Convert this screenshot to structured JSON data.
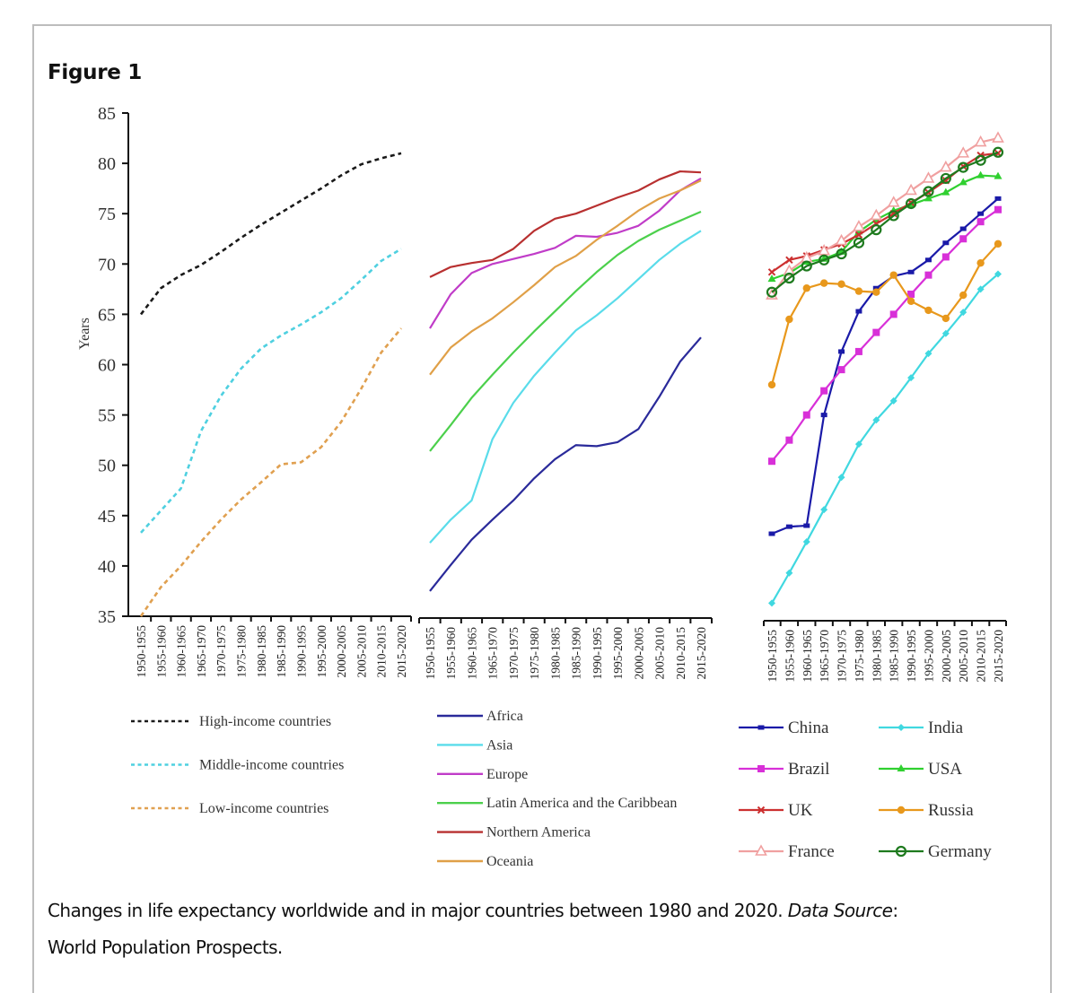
{
  "figure": {
    "title": "Figure 1",
    "caption_main": "Changes in life expectancy worldwide and in major countries between 1980 and 2020. ",
    "caption_source_label": "Data Source",
    "caption_source_sep": ": ",
    "caption_source_line2": "World Population Prospects."
  },
  "chart_data": [
    {
      "type": "line",
      "panel": "income-groups",
      "ylabel": "Years",
      "xlabel": "",
      "ylim": [
        35,
        85
      ],
      "yticks": [
        35,
        40,
        45,
        50,
        55,
        60,
        65,
        70,
        75,
        80,
        85
      ],
      "categories": [
        "1950-1955",
        "1955-1960",
        "1960-1965",
        "1965-1970",
        "1970-1975",
        "1975-1980",
        "1980-1985",
        "1985-1990",
        "1990-1995",
        "1995-2000",
        "2000-2005",
        "2005-2010",
        "2010-2015",
        "2015-2020"
      ],
      "legend_position": "bottom",
      "grid": false,
      "series": [
        {
          "name": "High-income countries",
          "color": "#1a1a1a",
          "dash": true,
          "marker": "none",
          "values": [
            65.0,
            67.6,
            68.9,
            69.9,
            71.2,
            72.6,
            73.9,
            75.1,
            76.3,
            77.5,
            78.8,
            79.9,
            80.5,
            81.0
          ]
        },
        {
          "name": "Middle-income countries",
          "color": "#4fd0e0",
          "dash": true,
          "marker": "none",
          "values": [
            43.3,
            45.5,
            47.7,
            53.4,
            56.9,
            59.6,
            61.6,
            62.9,
            64.0,
            65.2,
            66.6,
            68.4,
            70.3,
            71.5
          ]
        },
        {
          "name": "Low-income countries",
          "color": "#e0a050",
          "dash": true,
          "marker": "none",
          "values": [
            35.0,
            37.9,
            40.0,
            42.4,
            44.6,
            46.6,
            48.3,
            50.1,
            50.3,
            51.8,
            54.3,
            57.6,
            61.2,
            63.6
          ]
        }
      ]
    },
    {
      "type": "line",
      "panel": "regions",
      "ylim": [
        35,
        85
      ],
      "categories": [
        "1950-1955",
        "1955-1960",
        "1960-1965",
        "1965-1970",
        "1970-1975",
        "1975-1980",
        "1980-1985",
        "1985-1990",
        "1990-1995",
        "1995-2000",
        "2000-2005",
        "2005-2010",
        "2010-2015",
        "2015-2020"
      ],
      "legend_position": "bottom",
      "grid": false,
      "series": [
        {
          "name": "Africa",
          "color": "#2a2a9a",
          "marker": "none",
          "values": [
            37.5,
            40.1,
            42.6,
            44.6,
            46.5,
            48.7,
            50.6,
            52.0,
            51.9,
            52.3,
            53.6,
            56.8,
            60.3,
            62.7
          ]
        },
        {
          "name": "Asia",
          "color": "#5adcea",
          "marker": "none",
          "values": [
            42.3,
            44.6,
            46.5,
            52.6,
            56.2,
            58.9,
            61.2,
            63.4,
            64.9,
            66.6,
            68.5,
            70.4,
            72.0,
            73.3
          ]
        },
        {
          "name": "Europe",
          "color": "#c03cc8",
          "marker": "none",
          "values": [
            63.6,
            67.0,
            69.1,
            70.0,
            70.5,
            71.0,
            71.6,
            72.8,
            72.7,
            73.1,
            73.8,
            75.3,
            77.3,
            78.5
          ]
        },
        {
          "name": "Latin America and the Caribbean",
          "color": "#4cd04c",
          "marker": "none",
          "values": [
            51.4,
            54.0,
            56.7,
            59.0,
            61.2,
            63.3,
            65.3,
            67.3,
            69.2,
            70.9,
            72.3,
            73.4,
            74.3,
            75.2
          ]
        },
        {
          "name": "Northern America",
          "color": "#b83030",
          "marker": "none",
          "values": [
            68.7,
            69.7,
            70.1,
            70.4,
            71.5,
            73.3,
            74.5,
            75.0,
            75.8,
            76.6,
            77.3,
            78.4,
            79.2,
            79.1
          ]
        },
        {
          "name": "Oceania",
          "color": "#e0a048",
          "marker": "none",
          "values": [
            59.0,
            61.7,
            63.3,
            64.6,
            66.2,
            67.9,
            69.7,
            70.8,
            72.4,
            73.8,
            75.3,
            76.5,
            77.3,
            78.3
          ]
        }
      ]
    },
    {
      "type": "line",
      "panel": "countries",
      "ylim": [
        35,
        85
      ],
      "categories": [
        "1950-1955",
        "1955-1960",
        "1960-1965",
        "1965-1970",
        "1970-1975",
        "1975-1980",
        "1980-1985",
        "1985-1990",
        "1990-1995",
        "1995-2000",
        "2000-2005",
        "2005-2010",
        "2010-2015",
        "2015-2020"
      ],
      "legend_position": "bottom",
      "grid": false,
      "series": [
        {
          "name": "China",
          "color": "#1a1aa8",
          "marker": "dash",
          "values": [
            43.2,
            43.9,
            44.0,
            55.0,
            61.3,
            65.3,
            67.6,
            68.8,
            69.2,
            70.4,
            72.1,
            73.5,
            75.0,
            76.5
          ]
        },
        {
          "name": "India",
          "color": "#40d8e0",
          "marker": "diamond",
          "values": [
            36.3,
            39.3,
            42.4,
            45.6,
            48.8,
            52.1,
            54.5,
            56.4,
            58.7,
            61.1,
            63.1,
            65.2,
            67.5,
            69.0
          ]
        },
        {
          "name": "Brazil",
          "color": "#d830d8",
          "marker": "square",
          "values": [
            50.4,
            52.5,
            55.0,
            57.4,
            59.5,
            61.3,
            63.2,
            65.0,
            67.0,
            68.9,
            70.7,
            72.5,
            74.2,
            75.4
          ]
        },
        {
          "name": "USA",
          "color": "#30d030",
          "marker": "triangle-filled",
          "values": [
            68.5,
            69.1,
            70.2,
            70.5,
            71.2,
            73.2,
            74.4,
            75.3,
            75.9,
            76.5,
            77.1,
            78.1,
            78.8,
            78.7
          ]
        },
        {
          "name": "UK",
          "color": "#cc3030",
          "marker": "x",
          "values": [
            69.2,
            70.4,
            70.8,
            71.4,
            72.0,
            72.9,
            74.0,
            75.0,
            76.1,
            77.1,
            78.3,
            79.7,
            80.8,
            81.0
          ]
        },
        {
          "name": "Russia",
          "color": "#e8981c",
          "marker": "circle-filled",
          "values": [
            58.0,
            64.5,
            67.6,
            68.1,
            68.0,
            67.3,
            67.2,
            68.9,
            66.3,
            65.4,
            64.6,
            66.9,
            70.1,
            72.0
          ]
        },
        {
          "name": "France",
          "color": "#f0a0a0",
          "marker": "triangle-open",
          "values": [
            66.9,
            69.3,
            70.6,
            71.3,
            72.3,
            73.7,
            74.8,
            76.1,
            77.3,
            78.5,
            79.6,
            81.0,
            82.1,
            82.5
          ]
        },
        {
          "name": "Germany",
          "color": "#1e7a1e",
          "marker": "circle-open",
          "values": [
            67.2,
            68.6,
            69.8,
            70.4,
            71.0,
            72.1,
            73.4,
            74.8,
            76.0,
            77.2,
            78.5,
            79.6,
            80.3,
            81.1
          ]
        }
      ]
    }
  ]
}
